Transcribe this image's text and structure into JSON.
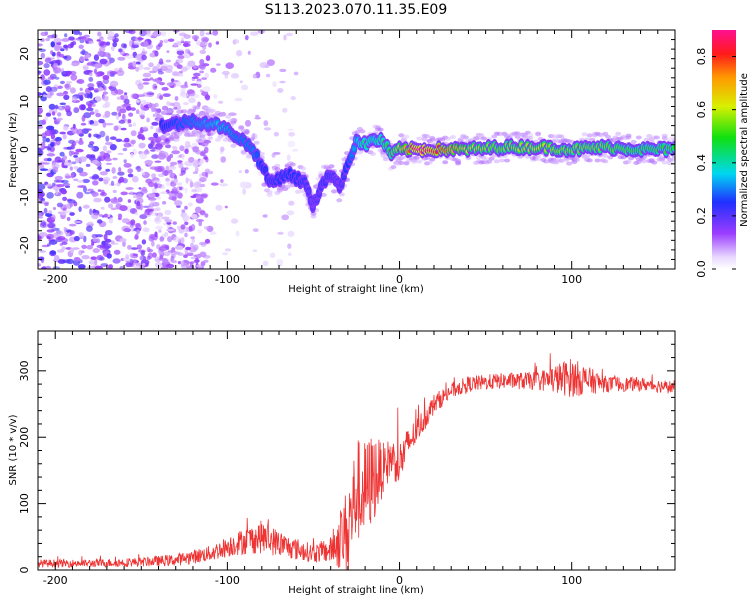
{
  "title": "S113.2023.070.11.35.E09",
  "chart_data": [
    {
      "type": "heatmap",
      "name": "spectrogram",
      "xlabel": "Height of straight line (km)",
      "ylabel": "Frequency (Hz)",
      "xlim": [
        -210,
        160
      ],
      "ylim": [
        -25,
        25
      ],
      "x_ticks": [
        -200,
        -100,
        0,
        100
      ],
      "x_tick_labels": [
        "-200",
        "-100",
        "0",
        "100"
      ],
      "y_ticks": [
        -20,
        -10,
        0,
        10,
        20
      ],
      "y_tick_labels": [
        "-20",
        "-10",
        "0",
        "10",
        "20"
      ],
      "ridge": {
        "x": [
          -135,
          -120,
          -105,
          -95,
          -85,
          -75,
          -65,
          -55,
          -50,
          -45,
          -40,
          -35,
          -30,
          -25,
          -20,
          -15,
          -10,
          -5,
          0,
          10,
          20,
          40,
          60,
          80,
          100,
          120,
          140,
          160
        ],
        "freq": [
          5,
          6,
          5,
          3,
          0,
          -7,
          -5,
          -7,
          -12,
          -7,
          -5,
          -8,
          -3,
          2,
          1,
          2,
          2,
          -1,
          0,
          0,
          0,
          0,
          0.5,
          0.5,
          0,
          0.5,
          0,
          0
        ],
        "amplitude": [
          0.25,
          0.3,
          0.35,
          0.3,
          0.3,
          0.2,
          0.25,
          0.2,
          0.15,
          0.2,
          0.2,
          0.15,
          0.25,
          0.35,
          0.45,
          0.4,
          0.45,
          0.5,
          0.6,
          0.9,
          0.85,
          0.6,
          0.55,
          0.6,
          0.55,
          0.55,
          0.5,
          0.5
        ]
      },
      "colorbar": {
        "label": "Normalized spectral amplitude",
        "range": [
          0,
          0.9
        ],
        "ticks": [
          0.0,
          0.2,
          0.4,
          0.6,
          0.8
        ],
        "tick_labels": [
          "0.0",
          "0.2",
          "0.4",
          "0.6",
          "0.8"
        ]
      }
    },
    {
      "type": "line",
      "name": "snr",
      "xlabel": "Height of straight line (km)",
      "ylabel": "SNR (10 * v/v)",
      "xlim": [
        -210,
        160
      ],
      "ylim": [
        0,
        360
      ],
      "x_ticks": [
        -200,
        -100,
        0,
        100
      ],
      "x_tick_labels": [
        "-200",
        "-100",
        "0",
        "100"
      ],
      "y_ticks": [
        0,
        100,
        200,
        300
      ],
      "y_tick_labels": [
        "0",
        "100",
        "200",
        "300"
      ],
      "series": [
        {
          "name": "SNR",
          "color": "#ee3333",
          "x": [
            -210,
            -180,
            -150,
            -130,
            -110,
            -95,
            -80,
            -65,
            -50,
            -40,
            -30,
            -25,
            -20,
            -15,
            -10,
            -5,
            0,
            5,
            10,
            20,
            30,
            40,
            60,
            80,
            100,
            120,
            140,
            160
          ],
          "y": [
            10,
            10,
            12,
            15,
            25,
            40,
            50,
            35,
            25,
            30,
            60,
            120,
            120,
            140,
            150,
            170,
            160,
            190,
            210,
            250,
            270,
            280,
            285,
            285,
            290,
            280,
            280,
            275
          ],
          "noise": [
            6,
            6,
            7,
            9,
            12,
            18,
            25,
            18,
            14,
            20,
            70,
            80,
            75,
            70,
            40,
            30,
            35,
            25,
            20,
            15,
            12,
            12,
            12,
            14,
            30,
            12,
            10,
            10
          ]
        }
      ]
    }
  ]
}
